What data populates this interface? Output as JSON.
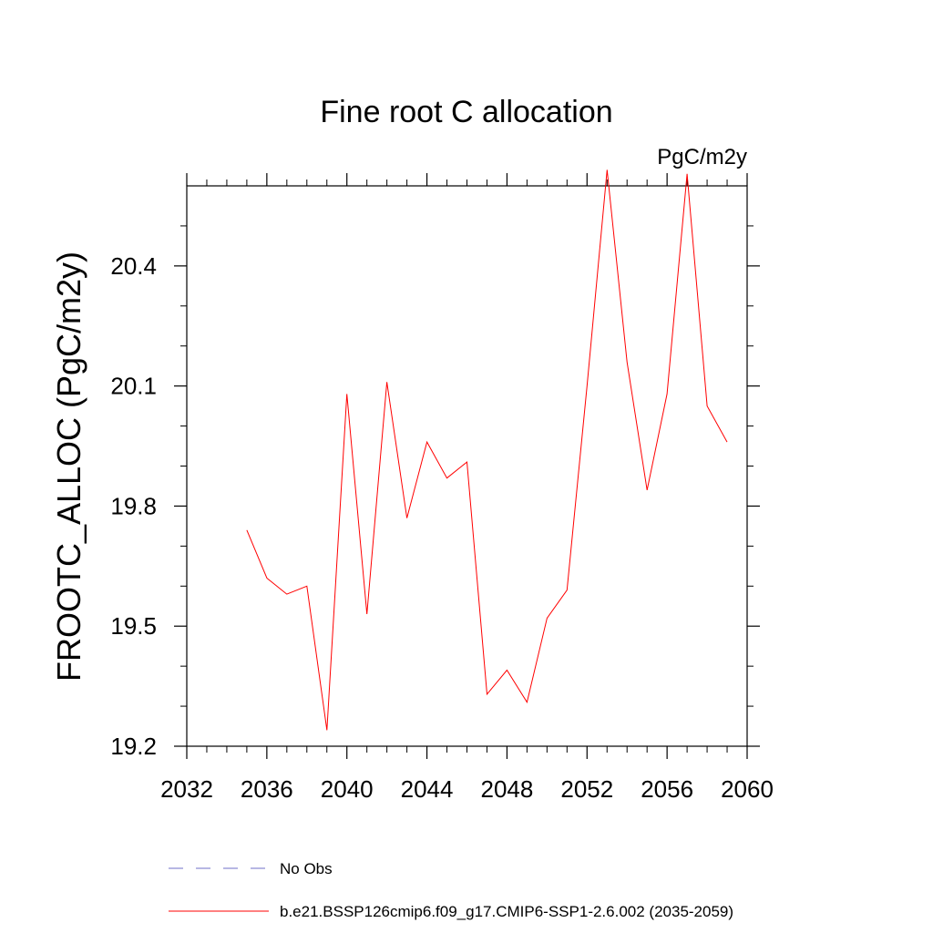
{
  "chart_data": {
    "type": "line",
    "title": "Fine root C allocation",
    "units_label": "PgC/m2y",
    "ylabel": "FROOTC_ALLOC  (PgC/m2y)",
    "xlabel": "",
    "xlim": [
      2032,
      2060
    ],
    "ylim": [
      19.2,
      20.6
    ],
    "x_ticks": [
      2032,
      2036,
      2040,
      2044,
      2048,
      2052,
      2056,
      2060
    ],
    "y_ticks": [
      19.2,
      19.5,
      19.8,
      20.1,
      20.4
    ],
    "grid": false,
    "legend_position": "bottom",
    "series": [
      {
        "name": "b.e21.BSSP126cmip6.f09_g17.CMIP6-SSP1-2.6.002 (2035-2059)",
        "color": "#ff0000",
        "style": "solid",
        "x": [
          2035,
          2036,
          2037,
          2038,
          2039,
          2040,
          2041,
          2042,
          2043,
          2044,
          2045,
          2046,
          2047,
          2048,
          2049,
          2050,
          2051,
          2052,
          2053,
          2054,
          2055,
          2056,
          2057,
          2058,
          2059
        ],
        "y": [
          19.74,
          19.62,
          19.58,
          19.6,
          19.24,
          20.08,
          19.53,
          20.11,
          19.77,
          19.96,
          19.87,
          19.91,
          19.33,
          19.39,
          19.31,
          19.52,
          19.59,
          20.1,
          20.64,
          20.16,
          19.84,
          20.08,
          20.63,
          20.05,
          19.96
        ]
      }
    ],
    "legend": [
      {
        "label": "No Obs",
        "color": "#6f6fc8",
        "style": "dashed"
      },
      {
        "label": "b.e21.BSSP126cmip6.f09_g17.CMIP6-SSP1-2.6.002 (2035-2059)",
        "color": "#ff0000",
        "style": "solid"
      }
    ]
  }
}
